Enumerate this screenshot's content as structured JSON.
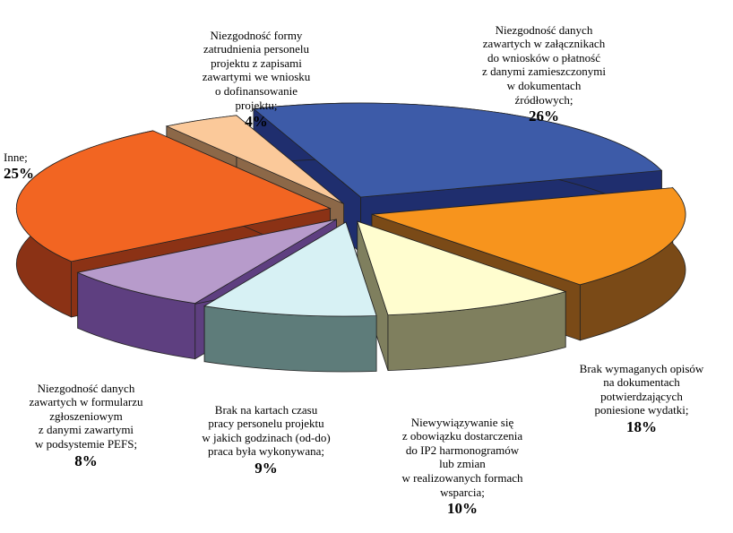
{
  "chart_data": {
    "type": "pie",
    "style": "3d-exploded",
    "slices": [
      {
        "label": "Niezgodność danych\nzawartych w załącznikach\ndo wniosków o płatność\nz danymi zamieszczonymi\nw dokumentach\nźródłowych;",
        "value": 26,
        "value_label": "26%",
        "color": "#3D5BA8",
        "side_color": "#1F2E6E"
      },
      {
        "label": "Brak wymaganych opisów\nna dokumentach\npotwierdzających\nponiesione wydatki;",
        "value": 18,
        "value_label": "18%",
        "color": "#F7941D",
        "side_color": "#7A4A17"
      },
      {
        "label": "Niewywiązywanie się\nz obowiązku dostarczenia\ndo IP2 harmonogramów\nlub zmian\nw realizowanych formach\nwsparcia;",
        "value": 10,
        "value_label": "10%",
        "color": "#FFFDCF",
        "side_color": "#7F7F5E"
      },
      {
        "label": "Brak na kartach czasu\npracy personelu projektu\nw jakich godzinach (od-do)\npraca była wykonywana;",
        "value": 9,
        "value_label": "9%",
        "color": "#D7F1F4",
        "side_color": "#5E7C7A"
      },
      {
        "label": "Niezgodność danych\nzawartych w formularzu\nzgłoszeniowym\nz danymi zawartymi\nw podsystemie PEFS;",
        "value": 8,
        "value_label": "8%",
        "color": "#B79BCB",
        "side_color": "#5E3F80"
      },
      {
        "label": "Inne;",
        "value": 25,
        "value_label": "25%",
        "color": "#F26522",
        "side_color": "#8B3215"
      },
      {
        "label": "Niezgodność formy\nzatrudnienia personelu\nprojektu z zapisami\nzawartymi we wniosku\no dofinansowanie\nprojektu;",
        "value": 4,
        "value_label": "4%",
        "color": "#FBC99A",
        "side_color": "#8C6848"
      }
    ],
    "legend": "none"
  }
}
